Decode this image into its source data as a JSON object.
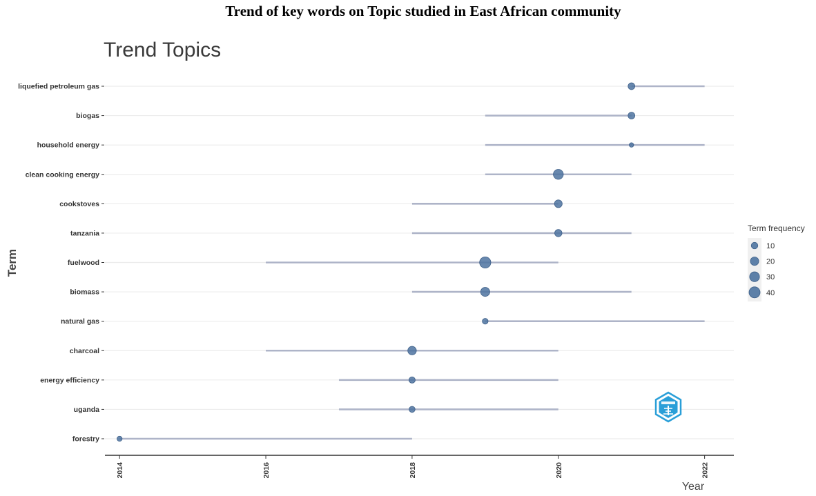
{
  "figure_title": "Trend of key words on Topic studied in East African community",
  "chart_data": {
    "type": "scatter",
    "title": "Trend Topics",
    "xlabel": "Year",
    "ylabel": "Term",
    "xlim": [
      2013.8,
      2022.4
    ],
    "x_ticks": [
      2014,
      2016,
      2018,
      2020,
      2022
    ],
    "grid": "horizontal",
    "legend": {
      "title": "Term frequency",
      "placement": "right",
      "entries": [
        {
          "label": "10",
          "value": 10
        },
        {
          "label": "20",
          "value": 20
        },
        {
          "label": "30",
          "value": 30
        },
        {
          "label": "40",
          "value": 40
        }
      ]
    },
    "colors": {
      "point": "#4d73a0",
      "range_line": "#aeb4c8",
      "grid": "#ececec",
      "axis": "#333333"
    },
    "terms": [
      {
        "term": "liquefied petroleum gas",
        "q1": 2021,
        "median": 2021,
        "q3": 2022,
        "freq": 14
      },
      {
        "term": "biogas",
        "q1": 2019,
        "median": 2021,
        "q3": 2021,
        "freq": 14
      },
      {
        "term": "household energy",
        "q1": 2019,
        "median": 2021,
        "q3": 2022,
        "freq": 6
      },
      {
        "term": "clean cooking energy",
        "q1": 2019,
        "median": 2020,
        "q3": 2021,
        "freq": 30
      },
      {
        "term": "cookstoves",
        "q1": 2018,
        "median": 2020,
        "q3": 2020,
        "freq": 18
      },
      {
        "term": "tanzania",
        "q1": 2018,
        "median": 2020,
        "q3": 2021,
        "freq": 16
      },
      {
        "term": "fuelwood",
        "q1": 2016,
        "median": 2019,
        "q3": 2020,
        "freq": 38
      },
      {
        "term": "biomass",
        "q1": 2018,
        "median": 2019,
        "q3": 2021,
        "freq": 25
      },
      {
        "term": "natural gas",
        "q1": 2019,
        "median": 2019,
        "q3": 2022,
        "freq": 10
      },
      {
        "term": "charcoal",
        "q1": 2016,
        "median": 2018,
        "q3": 2020,
        "freq": 22
      },
      {
        "term": "energy efficiency",
        "q1": 2017,
        "median": 2018,
        "q3": 2020,
        "freq": 12
      },
      {
        "term": "uganda",
        "q1": 2017,
        "median": 2018,
        "q3": 2020,
        "freq": 11
      },
      {
        "term": "forestry",
        "q1": 2014,
        "median": 2014,
        "q3": 2018,
        "freq": 8
      }
    ]
  },
  "logo": {
    "icon": "bibliometrix-logo-icon",
    "color": "#2a9fd8"
  }
}
